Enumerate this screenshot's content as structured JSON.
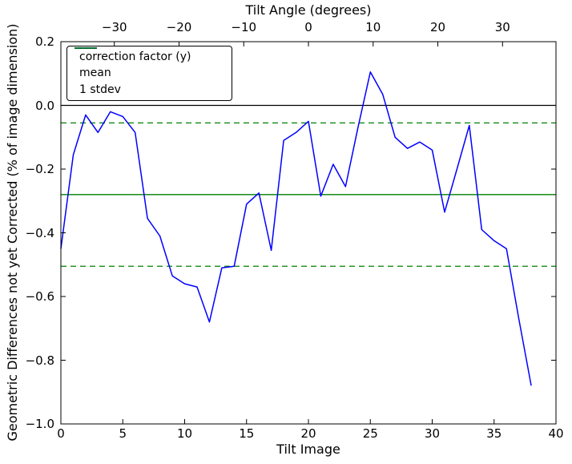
{
  "chart_data": {
    "type": "line",
    "title": "",
    "xlabel": "Tilt Image",
    "xlabel_top": "Tilt Angle (degrees)",
    "ylabel": "Geometric Differences not yet Corrected (% of image dimension)",
    "xlim": [
      0,
      40
    ],
    "ylim": [
      -1.0,
      0.2
    ],
    "grid": false,
    "legend_position": "upper left",
    "x": [
      0,
      1,
      2,
      3,
      4,
      5,
      6,
      7,
      8,
      9,
      10,
      11,
      12,
      13,
      14,
      15,
      16,
      17,
      18,
      19,
      20,
      21,
      22,
      23,
      24,
      25,
      26,
      27,
      28,
      29,
      30,
      31,
      32,
      33,
      34,
      35,
      36,
      37,
      38
    ],
    "series": [
      {
        "name": "correction factor (y)",
        "color": "#0000ff",
        "values": [
          -0.45,
          -0.155,
          -0.03,
          -0.085,
          -0.02,
          -0.035,
          -0.085,
          -0.355,
          -0.41,
          -0.535,
          -0.56,
          -0.57,
          -0.68,
          -0.51,
          -0.505,
          -0.31,
          -0.275,
          -0.455,
          -0.11,
          -0.085,
          -0.05,
          -0.285,
          -0.185,
          -0.255,
          -0.07,
          0.105,
          0.035,
          -0.1,
          -0.135,
          -0.115,
          -0.14,
          -0.335,
          -0.2,
          -0.063,
          -0.39,
          -0.425,
          -0.45,
          -0.67,
          -0.88
        ]
      }
    ],
    "reference_lines": [
      {
        "name": "zero",
        "value": 0.0,
        "color": "#000000",
        "style": "solid"
      },
      {
        "name": "mean",
        "value": -0.28,
        "color": "#008000",
        "style": "solid"
      },
      {
        "name": "stdev-upper",
        "value": -0.055,
        "color": "#008000",
        "style": "dashed"
      },
      {
        "name": "stdev-lower",
        "value": -0.505,
        "color": "#008000",
        "style": "dashed"
      }
    ],
    "xticks": [
      {
        "pos": 0,
        "label": "0"
      },
      {
        "pos": 5,
        "label": "5"
      },
      {
        "pos": 10,
        "label": "10"
      },
      {
        "pos": 15,
        "label": "15"
      },
      {
        "pos": 20,
        "label": "20"
      },
      {
        "pos": 25,
        "label": "25"
      },
      {
        "pos": 30,
        "label": "30"
      },
      {
        "pos": 35,
        "label": "35"
      },
      {
        "pos": 40,
        "label": "40"
      }
    ],
    "xticks_top": [
      {
        "pos": 4.318,
        "label": "−30"
      },
      {
        "pos": 9.545,
        "label": "−20"
      },
      {
        "pos": 14.773,
        "label": "−10"
      },
      {
        "pos": 20,
        "label": "0"
      },
      {
        "pos": 25.227,
        "label": "10"
      },
      {
        "pos": 30.455,
        "label": "20"
      },
      {
        "pos": 35.682,
        "label": "30"
      }
    ],
    "yticks": [
      {
        "pos": 0.2,
        "label": "0.2"
      },
      {
        "pos": 0.0,
        "label": "0.0"
      },
      {
        "pos": -0.2,
        "label": "−0.2"
      },
      {
        "pos": -0.4,
        "label": "−0.4"
      },
      {
        "pos": -0.6,
        "label": "−0.6"
      },
      {
        "pos": -0.8,
        "label": "−0.8"
      },
      {
        "pos": -1.0,
        "label": "−1.0"
      }
    ],
    "legend": {
      "entries": [
        {
          "label": "correction factor (y)",
          "color": "#0000ff",
          "dash": false
        },
        {
          "label": "mean",
          "color": "#008000",
          "dash": false
        },
        {
          "label": "1 stdev",
          "color": "#008000",
          "dash": true
        }
      ]
    }
  }
}
